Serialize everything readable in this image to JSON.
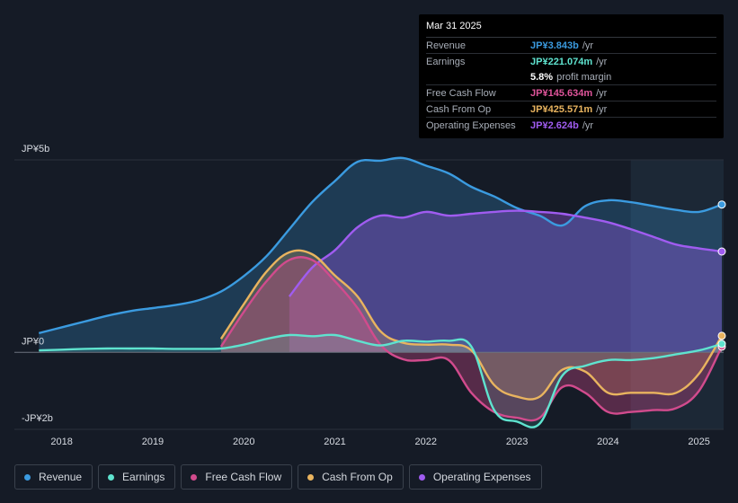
{
  "tooltip": {
    "date": "Mar 31 2025",
    "rows": [
      {
        "label": "Revenue",
        "value": "JP¥3.843b",
        "unit": "/yr",
        "color": "#3b9be0"
      },
      {
        "label": "Earnings",
        "value": "JP¥221.074m",
        "unit": "/yr",
        "color": "#5fe3cf"
      },
      {
        "label": "",
        "value": "5.8%",
        "unit": "profit margin",
        "color": "#ffffff"
      },
      {
        "label": "Free Cash Flow",
        "value": "JP¥145.634m",
        "unit": "/yr",
        "color": "#e0559b"
      },
      {
        "label": "Cash From Op",
        "value": "JP¥425.571m",
        "unit": "/yr",
        "color": "#e9b45f"
      },
      {
        "label": "Operating Expenses",
        "value": "JP¥2.624b",
        "unit": "/yr",
        "color": "#a05cf0"
      }
    ]
  },
  "legend": [
    {
      "name": "Revenue",
      "color": "#3b9be0"
    },
    {
      "name": "Earnings",
      "color": "#5fe3cf"
    },
    {
      "name": "Free Cash Flow",
      "color": "#d14b8d"
    },
    {
      "name": "Cash From Op",
      "color": "#e9b45f"
    },
    {
      "name": "Operating Expenses",
      "color": "#a05cf0"
    }
  ],
  "chart_data": {
    "type": "area",
    "y_unit": "JPY billions",
    "ylim": [
      -2.0,
      5.0
    ],
    "xlim": [
      2017.48,
      2025.27
    ],
    "y_tick_labels": [
      {
        "value": 5,
        "label": "JP¥5b"
      },
      {
        "value": 0,
        "label": "JP¥0"
      },
      {
        "value": -2,
        "label": "-JP¥2b"
      }
    ],
    "x_tick_labels": [
      "2018",
      "2019",
      "2020",
      "2021",
      "2022",
      "2023",
      "2024",
      "2025"
    ],
    "x_ticks": [
      2018,
      2019,
      2020,
      2021,
      2022,
      2023,
      2024,
      2025
    ],
    "highlight_start": 2024.25,
    "series": [
      {
        "name": "Revenue",
        "color": "#3b9be0",
        "x": [
          2017.75,
          2018.0,
          2018.25,
          2018.5,
          2018.75,
          2019.0,
          2019.25,
          2019.5,
          2019.75,
          2020.0,
          2020.25,
          2020.5,
          2020.75,
          2021.0,
          2021.25,
          2021.5,
          2021.75,
          2022.0,
          2022.25,
          2022.5,
          2022.75,
          2023.0,
          2023.25,
          2023.5,
          2023.75,
          2024.0,
          2024.25,
          2024.5,
          2024.75,
          2025.0,
          2025.25
        ],
        "values": [
          0.5,
          0.65,
          0.8,
          0.95,
          1.07,
          1.15,
          1.23,
          1.35,
          1.58,
          1.98,
          2.5,
          3.2,
          3.9,
          4.45,
          4.95,
          4.98,
          5.05,
          4.85,
          4.65,
          4.3,
          4.05,
          3.75,
          3.55,
          3.3,
          3.8,
          3.95,
          3.9,
          3.8,
          3.7,
          3.65,
          3.84
        ]
      },
      {
        "name": "Operating Expenses",
        "color": "#a05cf0",
        "x": [
          2020.5,
          2020.75,
          2021.0,
          2021.25,
          2021.5,
          2021.75,
          2022.0,
          2022.25,
          2022.5,
          2022.75,
          2023.0,
          2023.25,
          2023.5,
          2023.75,
          2024.0,
          2024.25,
          2024.5,
          2024.75,
          2025.0,
          2025.25
        ],
        "values": [
          1.45,
          2.2,
          2.65,
          3.25,
          3.55,
          3.5,
          3.65,
          3.55,
          3.6,
          3.65,
          3.68,
          3.65,
          3.6,
          3.5,
          3.38,
          3.2,
          3.0,
          2.8,
          2.7,
          2.62
        ]
      },
      {
        "name": "Cash From Op",
        "color": "#e9b45f",
        "x": [
          2019.75,
          2020.0,
          2020.25,
          2020.5,
          2020.75,
          2021.0,
          2021.25,
          2021.5,
          2021.75,
          2022.0,
          2022.25,
          2022.5,
          2022.75,
          2023.0,
          2023.25,
          2023.5,
          2023.75,
          2024.0,
          2024.25,
          2024.5,
          2024.75,
          2025.0,
          2025.25
        ],
        "values": [
          0.35,
          1.25,
          2.1,
          2.6,
          2.55,
          2.0,
          1.45,
          0.55,
          0.25,
          0.2,
          0.2,
          0.05,
          -0.85,
          -1.15,
          -1.15,
          -0.45,
          -0.5,
          -1.05,
          -1.05,
          -1.05,
          -1.05,
          -0.55,
          0.43
        ]
      },
      {
        "name": "Free Cash Flow",
        "color": "#d14b8d",
        "x": [
          2019.75,
          2020.0,
          2020.25,
          2020.5,
          2020.75,
          2021.0,
          2021.25,
          2021.5,
          2021.75,
          2022.0,
          2022.25,
          2022.5,
          2022.75,
          2023.0,
          2023.25,
          2023.5,
          2023.75,
          2024.0,
          2024.25,
          2024.5,
          2024.75,
          2025.0,
          2025.25
        ],
        "values": [
          0.15,
          1.05,
          1.85,
          2.4,
          2.4,
          1.85,
          1.15,
          0.2,
          -0.18,
          -0.2,
          -0.2,
          -1.05,
          -1.55,
          -1.7,
          -1.7,
          -0.9,
          -1.05,
          -1.55,
          -1.55,
          -1.5,
          -1.45,
          -1.0,
          0.15
        ]
      },
      {
        "name": "Earnings",
        "color": "#5fe3cf",
        "x": [
          2017.75,
          2018.0,
          2018.25,
          2018.5,
          2018.75,
          2019.0,
          2019.25,
          2019.5,
          2019.75,
          2020.0,
          2020.25,
          2020.5,
          2020.75,
          2021.0,
          2021.25,
          2021.5,
          2021.75,
          2022.0,
          2022.25,
          2022.5,
          2022.75,
          2023.0,
          2023.25,
          2023.5,
          2023.75,
          2024.0,
          2024.25,
          2024.5,
          2024.75,
          2025.0,
          2025.25
        ],
        "values": [
          0.05,
          0.07,
          0.09,
          0.1,
          0.1,
          0.1,
          0.09,
          0.09,
          0.1,
          0.2,
          0.35,
          0.45,
          0.42,
          0.45,
          0.3,
          0.18,
          0.3,
          0.28,
          0.3,
          0.15,
          -1.5,
          -1.8,
          -1.85,
          -0.6,
          -0.35,
          -0.2,
          -0.2,
          -0.15,
          -0.05,
          0.05,
          0.22
        ]
      }
    ]
  }
}
